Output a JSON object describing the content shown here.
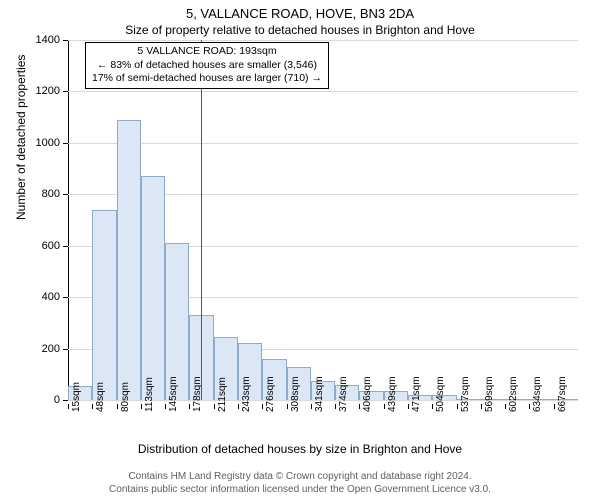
{
  "header": {
    "address": "5, VALLANCE ROAD, HOVE, BN3 2DA",
    "subtitle": "Size of property relative to detached houses in Brighton and Hove"
  },
  "info_box": {
    "line1": "5 VALLANCE ROAD: 193sqm",
    "line2": "← 83% of detached houses are smaller (3,546)",
    "line3": "17% of semi-detached houses are larger (710) →"
  },
  "axis": {
    "ylabel": "Number of detached properties",
    "xlabel": "Distribution of detached houses by size in Brighton and Hove"
  },
  "footer": {
    "line1": "Contains HM Land Registry data © Crown copyright and database right 2024.",
    "line2": "Contains public sector information licensed under the Open Government Licence v3.0."
  },
  "chart": {
    "type": "histogram",
    "ylim": [
      0,
      1400
    ],
    "ytick_step": 200,
    "yticks": [
      0,
      200,
      400,
      600,
      800,
      1000,
      1200,
      1400
    ],
    "grid_color": "#d9d9d9",
    "bar_fill": "#dbe7f5",
    "bar_stroke": "#8faad0",
    "background": "#ffffff",
    "reference_line": {
      "x": 193,
      "color": "#d62020",
      "label": "193sqm"
    },
    "bin_width": 32.5,
    "x_start": 15,
    "categories": [
      "15sqm",
      "48sqm",
      "80sqm",
      "113sqm",
      "145sqm",
      "178sqm",
      "211sqm",
      "243sqm",
      "276sqm",
      "308sqm",
      "341sqm",
      "374sqm",
      "406sqm",
      "439sqm",
      "471sqm",
      "504sqm",
      "537sqm",
      "569sqm",
      "602sqm",
      "634sqm",
      "667sqm"
    ],
    "values": [
      55,
      740,
      1090,
      870,
      610,
      330,
      245,
      220,
      160,
      130,
      75,
      60,
      35,
      35,
      20,
      20,
      5,
      5,
      5,
      5,
      3
    ]
  },
  "style": {
    "title_fontsize": 13,
    "subtitle_fontsize": 12,
    "axis_label_fontsize": 12,
    "tick_fontsize": 11,
    "xtick_fontsize": 10,
    "infobox_fontsize": 10.5,
    "footer_color": "#606060"
  }
}
